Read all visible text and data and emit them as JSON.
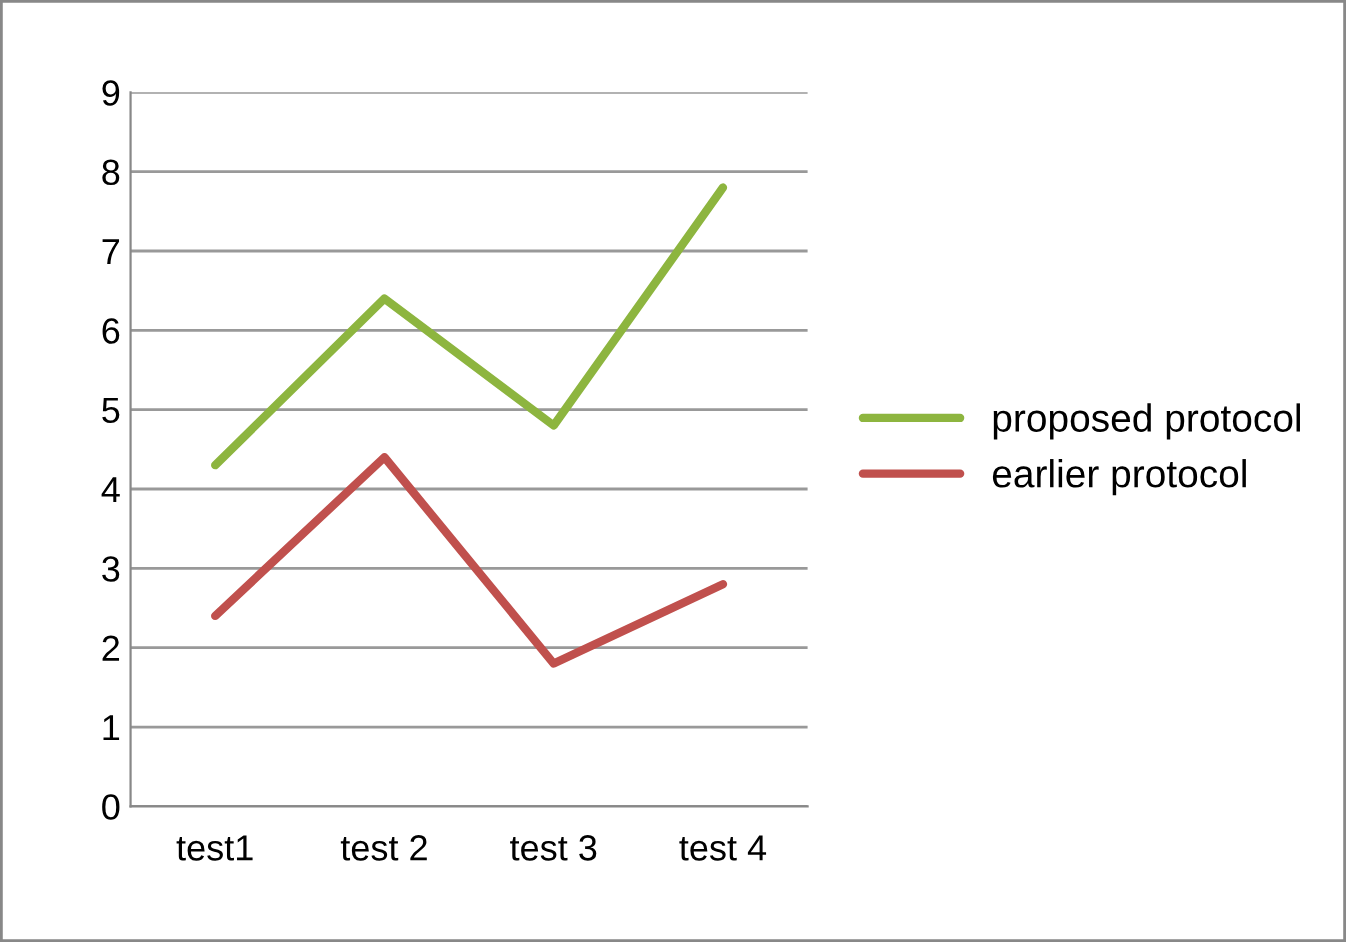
{
  "chart_data": {
    "type": "line",
    "categories": [
      "test1",
      "test 2",
      "test 3",
      "test 4"
    ],
    "series": [
      {
        "name": "proposed protocol",
        "color": "#8db53f",
        "values": [
          4.3,
          6.4,
          4.8,
          7.8
        ]
      },
      {
        "name": "earlier protocol",
        "color": "#c0504d",
        "values": [
          2.4,
          4.4,
          1.8,
          2.8
        ]
      }
    ],
    "ylim": [
      0,
      9
    ],
    "yticks": [
      0,
      1,
      2,
      3,
      4,
      5,
      6,
      7,
      8,
      9
    ],
    "grid": "y",
    "legend": "right",
    "marker": "none",
    "line_style": "solid"
  }
}
